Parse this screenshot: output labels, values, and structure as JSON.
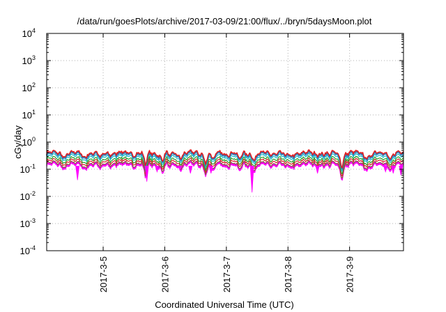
{
  "chart_data": {
    "type": "line",
    "title": "/data/run/goesPlots/archive/2017-03-09/21:00/flux/../bryn/5daysMoon.plot",
    "xlabel": "Coordinated Universal Time (UTC)",
    "ylabel": "cGy/day",
    "y_scale": "log",
    "ylim": [
      0.0001,
      10000
    ],
    "y_ticks": [
      {
        "value": 0.0001,
        "mantissa": "10",
        "exp": "-4"
      },
      {
        "value": 0.001,
        "mantissa": "10",
        "exp": "-3"
      },
      {
        "value": 0.01,
        "mantissa": "10",
        "exp": "-2"
      },
      {
        "value": 0.1,
        "mantissa": "10",
        "exp": "-1"
      },
      {
        "value": 1,
        "mantissa": "10",
        "exp": "0"
      },
      {
        "value": 10,
        "mantissa": "10",
        "exp": "1"
      },
      {
        "value": 100,
        "mantissa": "10",
        "exp": "2"
      },
      {
        "value": 1000,
        "mantissa": "10",
        "exp": "3"
      },
      {
        "value": 10000,
        "mantissa": "10",
        "exp": "4"
      }
    ],
    "xlim": [
      "2017-03-04T02:00",
      "2017-03-09T21:00"
    ],
    "x_ticks": [
      {
        "value": "2017-03-05T00:00",
        "label": "2017-3-5"
      },
      {
        "value": "2017-03-06T00:00",
        "label": "2017-3-6"
      },
      {
        "value": "2017-03-07T00:00",
        "label": "2017-3-7"
      },
      {
        "value": "2017-03-08T00:00",
        "label": "2017-3-8"
      },
      {
        "value": "2017-03-09T00:00",
        "label": "2017-3-9"
      }
    ],
    "grid": true,
    "dips": [
      {
        "x": "2017-03-04T09:00",
        "factor": 0.75,
        "width_h": 1.5
      },
      {
        "x": "2017-03-04T16:30",
        "factor": 0.7,
        "width_h": 1.5
      },
      {
        "x": "2017-03-04T23:00",
        "factor": 0.6,
        "width_h": 1.5
      },
      {
        "x": "2017-03-05T16:30",
        "factor": 0.3,
        "width_h": 1.5
      },
      {
        "x": "2017-03-05T23:00",
        "factor": 0.5,
        "width_h": 1.5
      },
      {
        "x": "2017-03-06T02:00",
        "factor": 0.7,
        "width_h": 1.5
      },
      {
        "x": "2017-03-06T06:00",
        "factor": 0.7,
        "width_h": 1.5
      },
      {
        "x": "2017-03-06T16:00",
        "factor": 0.45,
        "width_h": 1.5
      },
      {
        "x": "2017-03-06T19:00",
        "factor": 0.5,
        "width_h": 1.5
      },
      {
        "x": "2017-03-07T05:00",
        "factor": 0.5,
        "width_h": 1.5
      },
      {
        "x": "2017-03-07T11:00",
        "factor": 0.5,
        "width_h": 1.5
      },
      {
        "x": "2017-03-07T23:00",
        "factor": 0.7,
        "width_h": 1.5
      },
      {
        "x": "2017-03-08T01:00",
        "factor": 0.7,
        "width_h": 1.5
      },
      {
        "x": "2017-03-08T16:00",
        "factor": 0.8,
        "width_h": 1.5
      },
      {
        "x": "2017-03-08T21:00",
        "factor": 0.3,
        "width_h": 1.5
      },
      {
        "x": "2017-03-09T06:30",
        "factor": 0.7,
        "width_h": 1.5
      },
      {
        "x": "2017-03-09T08:00",
        "factor": 0.7,
        "width_h": 1.5
      },
      {
        "x": "2017-03-09T16:00",
        "factor": 0.6,
        "width_h": 1.5
      }
    ],
    "spikes": [
      {
        "x": "2017-03-04T14:00",
        "min": 0.04
      },
      {
        "x": "2017-03-05T17:00",
        "min": 0.035
      },
      {
        "x": "2017-03-05T21:00",
        "min": 0.08
      },
      {
        "x": "2017-03-06T06:00",
        "min": 0.1
      },
      {
        "x": "2017-03-06T10:00",
        "min": 0.07
      },
      {
        "x": "2017-03-06T18:00",
        "min": 0.07
      },
      {
        "x": "2017-03-07T10:00",
        "min": 0.014
      },
      {
        "x": "2017-03-08T11:30",
        "min": 0.07
      },
      {
        "x": "2017-03-09T14:00",
        "min": 0.08
      },
      {
        "x": "2017-03-09T17:00",
        "min": 0.07
      },
      {
        "x": "2017-03-09T20:00",
        "min": 0.06
      }
    ],
    "series": [
      {
        "base": 0.4,
        "color": "#e41a1c",
        "width": 1.5,
        "fill_to": null
      },
      {
        "base": 0.36,
        "color": "#377eb8",
        "width": 2.2,
        "fill_to": null
      },
      {
        "base": 0.3,
        "color": "#17becf",
        "width": 1.2,
        "fill_to": null
      },
      {
        "base": 0.24,
        "color": "#2ca02c",
        "width": 1.2,
        "fill_to": null
      },
      {
        "base": 0.2,
        "color": "#d62728",
        "width": 1.2,
        "fill_to": null
      },
      {
        "base": 0.165,
        "color": "#8c564b",
        "width": 1.2,
        "fill_to": null
      },
      {
        "base": 0.14,
        "color": "#ff00ff",
        "width": 1.2,
        "fill_to": 0.165
      }
    ]
  }
}
